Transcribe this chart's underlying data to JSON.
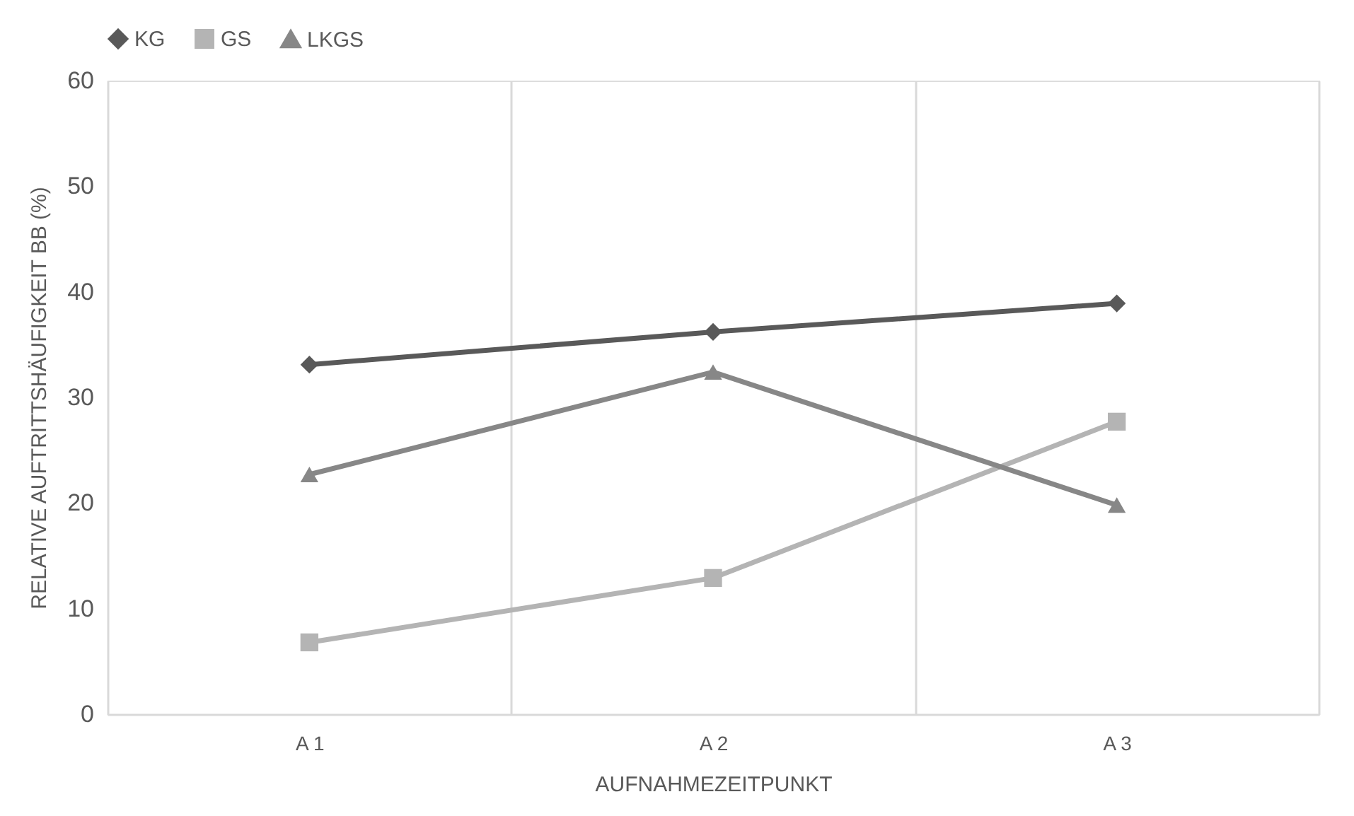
{
  "chart_data": {
    "type": "line",
    "xlabel": "AUFNAHMEZEITPUNKT",
    "ylabel": "RELATIVE AUFTRITTSHÄUFIGKEIT BB (%)",
    "categories": [
      "A 1",
      "A 2",
      "A 3"
    ],
    "series": [
      {
        "name": "KG",
        "color": "#595959",
        "marker": "diamond",
        "values": [
          33.1,
          36.2,
          38.9
        ]
      },
      {
        "name": "GS",
        "color": "#b4b4b4",
        "marker": "square",
        "values": [
          6.8,
          12.9,
          27.7
        ]
      },
      {
        "name": "LKGS",
        "color": "#878787",
        "marker": "triangle",
        "values": [
          22.7,
          32.4,
          19.8
        ]
      }
    ],
    "ylim": [
      0,
      60
    ],
    "yticks": [
      0,
      10,
      20,
      30,
      40,
      50,
      60
    ],
    "grid": "x",
    "legend": "top",
    "line_style": "solid"
  }
}
